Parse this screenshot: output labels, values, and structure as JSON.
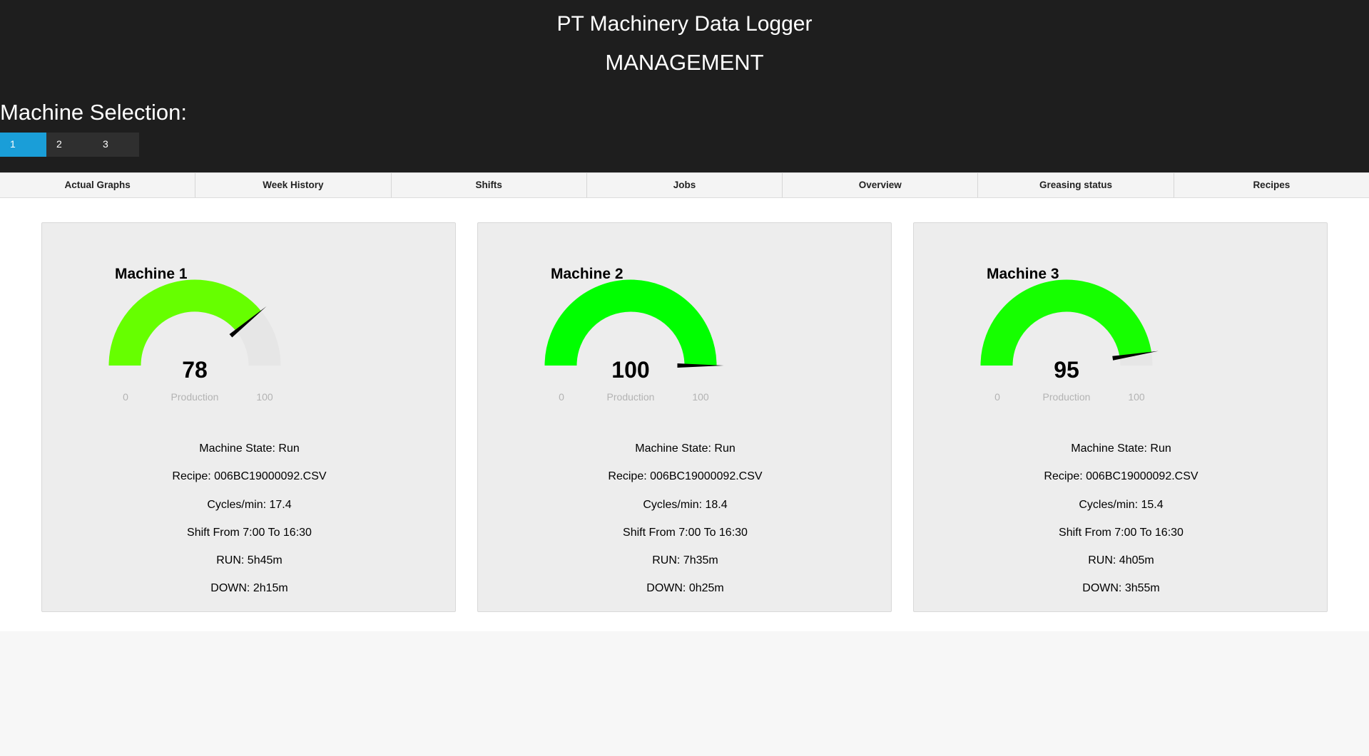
{
  "header": {
    "title": "PT Machinery Data Logger",
    "subtitle": "MANAGEMENT",
    "selection_label": "Machine Selection:",
    "machines": [
      "1",
      "2",
      "3"
    ],
    "active_machine": "1"
  },
  "tabs": [
    "Actual Graphs",
    "Week History",
    "Shifts",
    "Jobs",
    "Overview",
    "Greasing status",
    "Recipes"
  ],
  "cards": [
    {
      "title": "Machine 1",
      "gauge": {
        "value": 78,
        "min": "0",
        "max": "100",
        "label": "Production",
        "color": "#66ff00"
      },
      "state": "Machine State: Run",
      "recipe": "Recipe: 006BC19000092.CSV",
      "cycles": "Cycles/min: 17.4",
      "shift": "Shift From 7:00 To 16:30",
      "run": "RUN: 5h45m",
      "down": "DOWN: 2h15m"
    },
    {
      "title": "Machine 2",
      "gauge": {
        "value": 100,
        "min": "0",
        "max": "100",
        "label": "Production",
        "color": "#00ff00"
      },
      "state": "Machine State: Run",
      "recipe": "Recipe: 006BC19000092.CSV",
      "cycles": "Cycles/min: 18.4",
      "shift": "Shift From 7:00 To 16:30",
      "run": "RUN: 7h35m",
      "down": "DOWN: 0h25m"
    },
    {
      "title": "Machine 3",
      "gauge": {
        "value": 95,
        "min": "0",
        "max": "100",
        "label": "Production",
        "color": "#16ff00"
      },
      "state": "Machine State: Run",
      "recipe": "Recipe: 006BC19000092.CSV",
      "cycles": "Cycles/min: 15.4",
      "shift": "Shift From 7:00 To 16:30",
      "run": "RUN: 4h05m",
      "down": "DOWN: 3h55m"
    }
  ],
  "colors": {
    "header_bg": "#1e1e1e",
    "active_button": "#1a9ed8",
    "gauge_track": "#e6e6e6"
  }
}
